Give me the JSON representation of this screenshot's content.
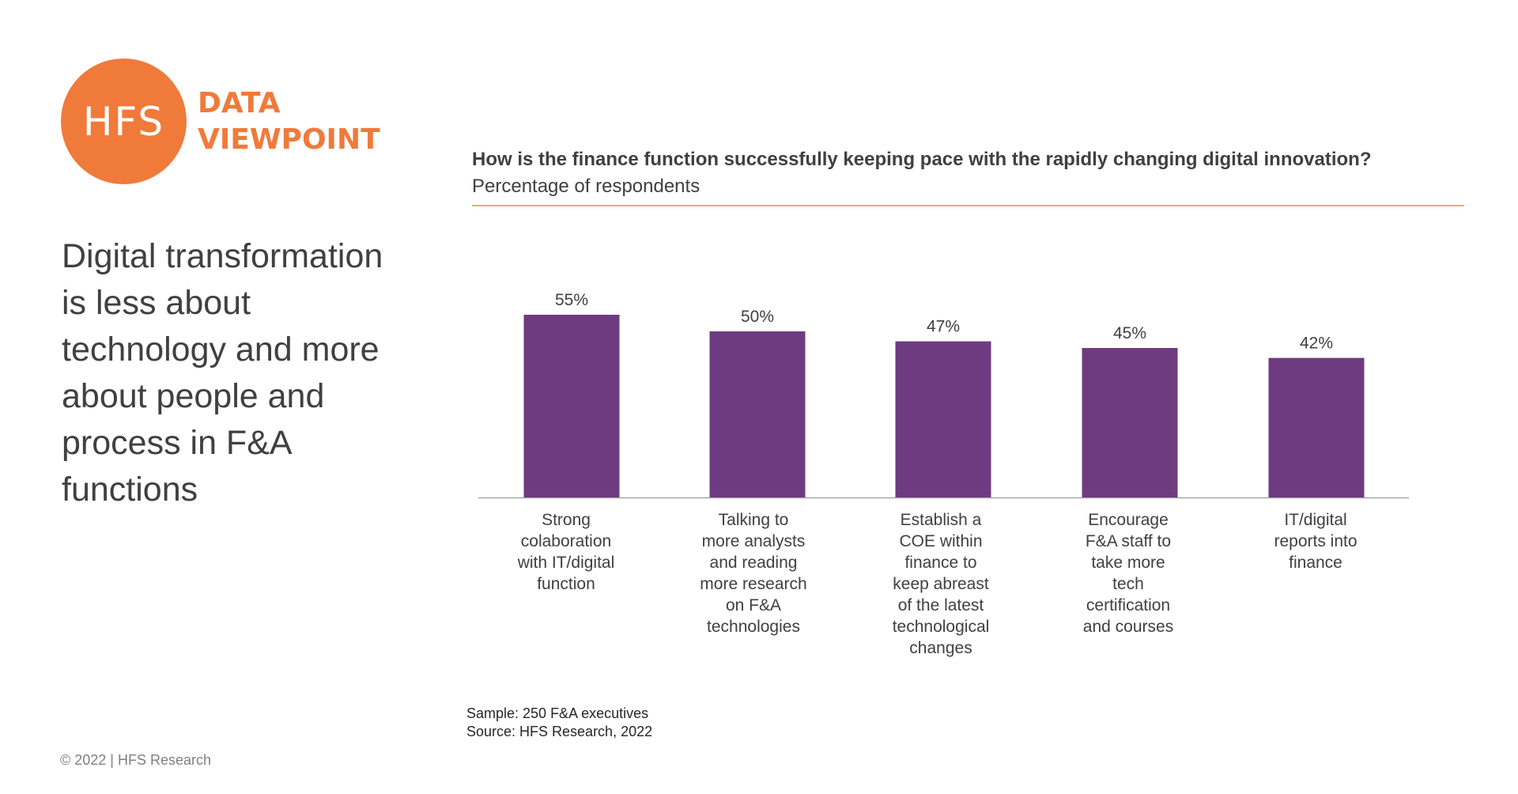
{
  "branding": {
    "logo_text": "HFS",
    "subtitle_line1": "DATA",
    "subtitle_line2": "VIEWPOINT",
    "accent_color": "#f07a3a"
  },
  "headline": "Digital transformation is less about technology and more about people and process in F&A functions",
  "footer": {
    "copyright": "© 2022 | HFS Research"
  },
  "notes": {
    "sample": "Sample: 250 F&A executives",
    "source": "Source: HFS Research, 2022"
  },
  "chart_data": {
    "type": "bar",
    "title": "How is the finance function successfully keeping pace with the rapidly changing digital innovation?",
    "subtitle": "Percentage of respondents",
    "categories": [
      [
        "Strong",
        "colaboration",
        "with IT/digital",
        "function"
      ],
      [
        "Talking to",
        "more analysts",
        "and reading",
        "more research",
        "on F&A",
        "technologies"
      ],
      [
        "Establish a",
        "COE within",
        "finance to",
        "keep abreast",
        "of the latest",
        "technological",
        "changes"
      ],
      [
        "Encourage",
        "F&A staff to",
        "take more",
        "tech",
        "certification",
        "and courses"
      ],
      [
        "IT/digital",
        "reports into",
        "finance"
      ]
    ],
    "values": [
      55,
      50,
      47,
      45,
      42
    ],
    "value_labels": [
      "55%",
      "50%",
      "47%",
      "45%",
      "42%"
    ],
    "ylim": [
      0,
      60
    ],
    "grid": false,
    "bar_color": "#6f3b80"
  }
}
